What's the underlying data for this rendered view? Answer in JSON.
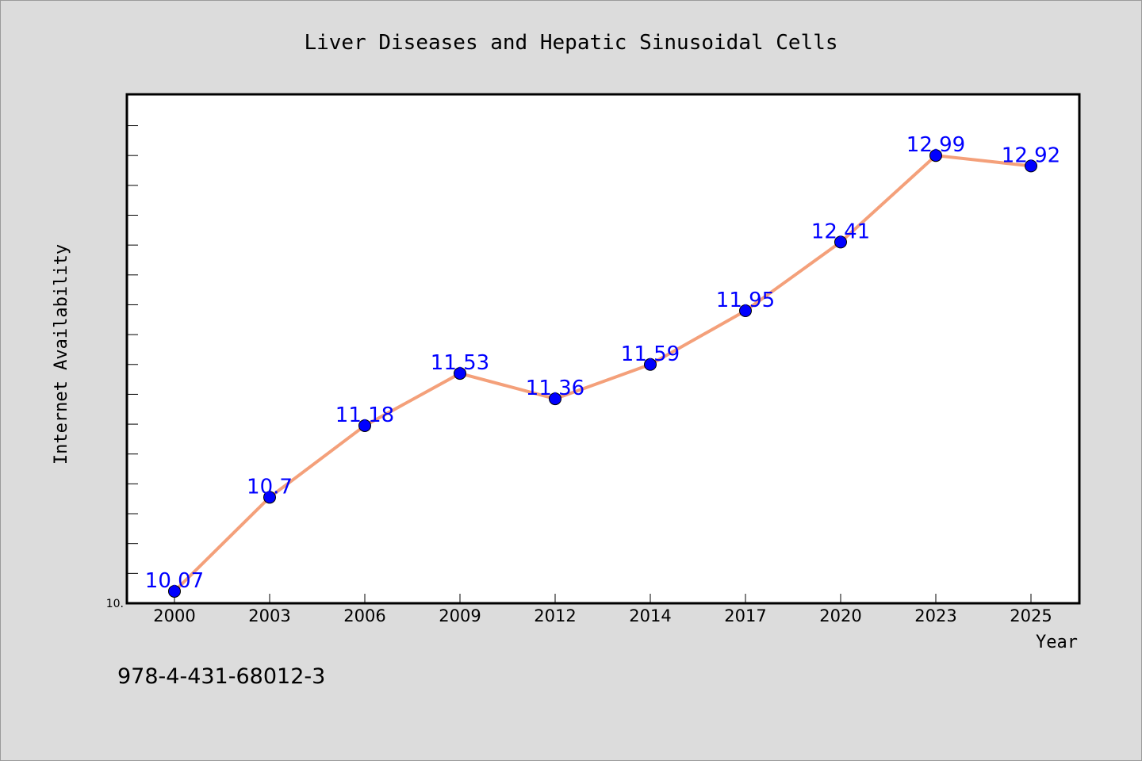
{
  "colors": {
    "background": "#dcdcdc",
    "plot_background": "#ffffff",
    "line": "#f4a07a",
    "marker": "#0000ff",
    "data_label": "#0000ff"
  },
  "footer": {
    "isbn": "978-4-431-68012-3"
  },
  "chart_data": {
    "type": "line",
    "title": "Liver Diseases and Hepatic Sinusoidal Cells",
    "xlabel": "Year",
    "ylabel": "Internet Availability",
    "categories": [
      "2000",
      "2003",
      "2006",
      "2009",
      "2012",
      "2014",
      "2017",
      "2020",
      "2023",
      "2025"
    ],
    "values": [
      10.07,
      10.7,
      11.18,
      11.53,
      11.36,
      11.59,
      11.95,
      12.41,
      12.99,
      12.92
    ],
    "data_labels": [
      "10.07",
      "10.7",
      "11.18",
      "11.53",
      "11.36",
      "11.59",
      "11.95",
      "12.41",
      "12.99",
      "12.92"
    ],
    "ylim": [
      9.99,
      13.4
    ],
    "y_tick_labels": [
      {
        "value": 9.99,
        "label": "10."
      }
    ],
    "y_minor_tick_step": 0.2,
    "grid": false,
    "legend": "none",
    "marker": "circle"
  }
}
